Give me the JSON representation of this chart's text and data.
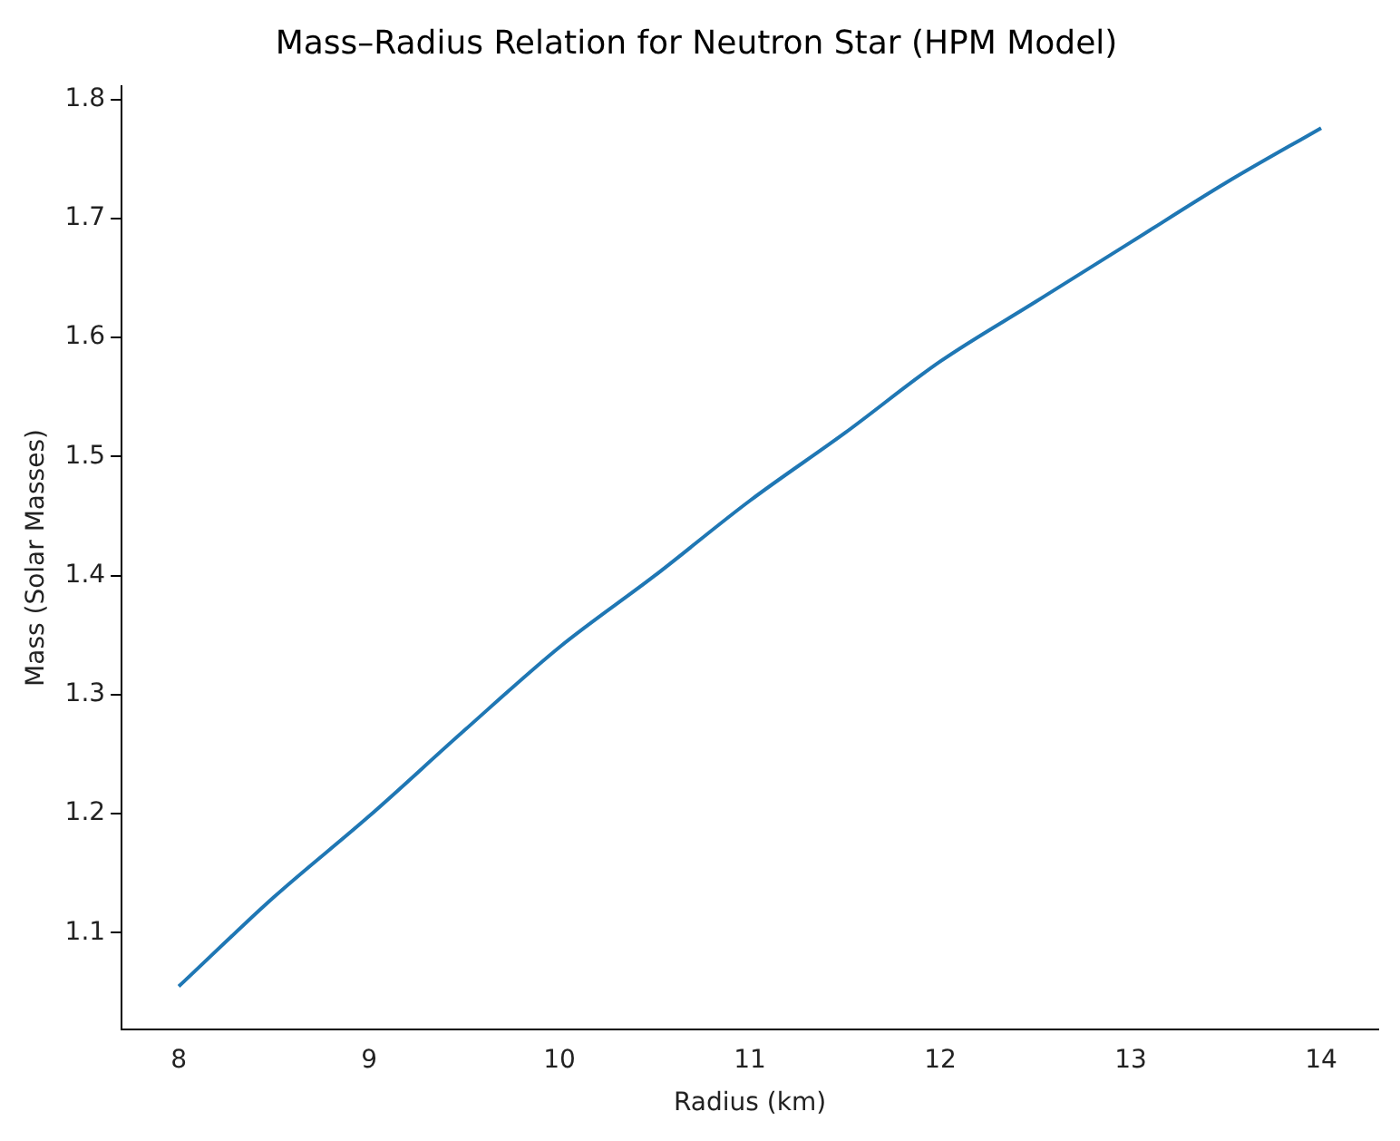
{
  "chart_data": {
    "type": "line",
    "title": "Mass–Radius Relation for Neutron Star (HPM Model)",
    "xlabel": "Radius (km)",
    "ylabel": "Mass (Solar Masses)",
    "x": [
      8,
      8.5,
      9,
      9.5,
      10,
      10.5,
      11,
      11.5,
      12,
      12.5,
      13,
      13.5,
      14
    ],
    "series": [
      {
        "color": "#1f77b4",
        "values": [
          1.055,
          1.13,
          1.198,
          1.27,
          1.34,
          1.4,
          1.463,
          1.52,
          1.58,
          1.63,
          1.68,
          1.73,
          1.776
        ]
      }
    ],
    "xlim": [
      7.7,
      14.3
    ],
    "xticks": [
      8,
      9,
      10,
      11,
      12,
      13,
      14
    ],
    "ylim": [
      1.019,
      1.811
    ],
    "yticks": [
      1.1,
      1.2,
      1.3,
      1.4,
      1.5,
      1.6,
      1.7,
      1.8
    ],
    "grid": false,
    "legend": false,
    "marker": "none",
    "line_style": "solid"
  }
}
